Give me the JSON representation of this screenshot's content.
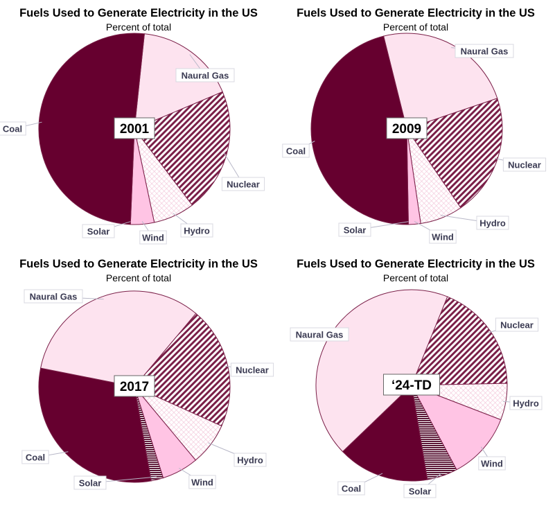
{
  "colors": {
    "coal": "#66002f",
    "natural_gas": "#fde3ef",
    "nuclear": "#7a1f48",
    "hydro": "#f3c4d8",
    "wind": "#ffc4e4",
    "solar": "#4a0022",
    "outline": "#7a1f48"
  },
  "chart_data": [
    {
      "type": "pie",
      "title": "Fuels Used to Generate Electricity in the US",
      "subtitle": "Percent of total",
      "center_label": "2001",
      "categories": [
        "Coal",
        "Naural Gas",
        "Nuclear",
        "Hydro",
        "Wind",
        "Solar"
      ],
      "values": [
        51,
        17,
        21,
        7,
        4,
        0
      ]
    },
    {
      "type": "pie",
      "title": "Fuels Used to Generate Electricity in the US",
      "subtitle": "Percent of total",
      "center_label": "2009",
      "categories": [
        "Coal",
        "Naural Gas",
        "Nuclear",
        "Hydro",
        "Wind",
        "Solar"
      ],
      "values": [
        45,
        23,
        20,
        7,
        2,
        0
      ]
    },
    {
      "type": "pie",
      "title": "Fuels Used to Generate Electricity in the US",
      "subtitle": "Percent of total",
      "center_label": "2017",
      "categories": [
        "Coal",
        "Naural Gas",
        "Nuclear",
        "Hydro",
        "Wind",
        "Solar"
      ],
      "values": [
        30,
        32,
        20,
        7,
        6,
        2
      ]
    },
    {
      "type": "pie",
      "title": "Fuels Used to Generate Electricity in the US",
      "subtitle": "Percent of total",
      "center_label": "‘24-TD",
      "categories": [
        "Coal",
        "Naural Gas",
        "Nuclear",
        "Hydro",
        "Wind",
        "Solar"
      ],
      "values": [
        15,
        42,
        18,
        6,
        11,
        5
      ]
    }
  ]
}
